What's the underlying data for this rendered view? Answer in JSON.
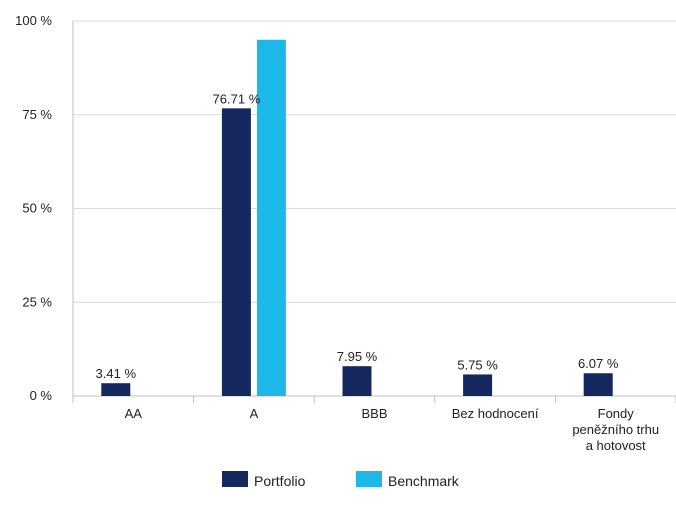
{
  "chart_data": {
    "type": "bar",
    "title": "",
    "xlabel": "",
    "ylabel": "",
    "ylim": [
      0,
      100
    ],
    "yticks": [
      0,
      25,
      50,
      75,
      100
    ],
    "ytick_labels": [
      "0 %",
      "25 %",
      "50 %",
      "75 %",
      "100 %"
    ],
    "grid": "horizontal",
    "legend_position": "bottom",
    "categories": [
      [
        "AA"
      ],
      [
        "A"
      ],
      [
        "BBB"
      ],
      [
        "Bez hodnocení"
      ],
      [
        "Fondy",
        "peněžního trhu",
        "a hotovost"
      ]
    ],
    "series": [
      {
        "name": "Portfolio",
        "color": "#14285f",
        "values": [
          3.41,
          76.71,
          7.95,
          5.75,
          6.07
        ],
        "data_labels": [
          "3.41 %",
          "76.71 %",
          "7.95 %",
          "5.75 %",
          "6.07 %"
        ]
      },
      {
        "name": "Benchmark",
        "color": "#1cb9e8",
        "values": [
          0,
          95,
          0,
          0,
          0
        ],
        "data_labels": [
          "",
          "",
          "",
          "",
          ""
        ]
      }
    ]
  }
}
